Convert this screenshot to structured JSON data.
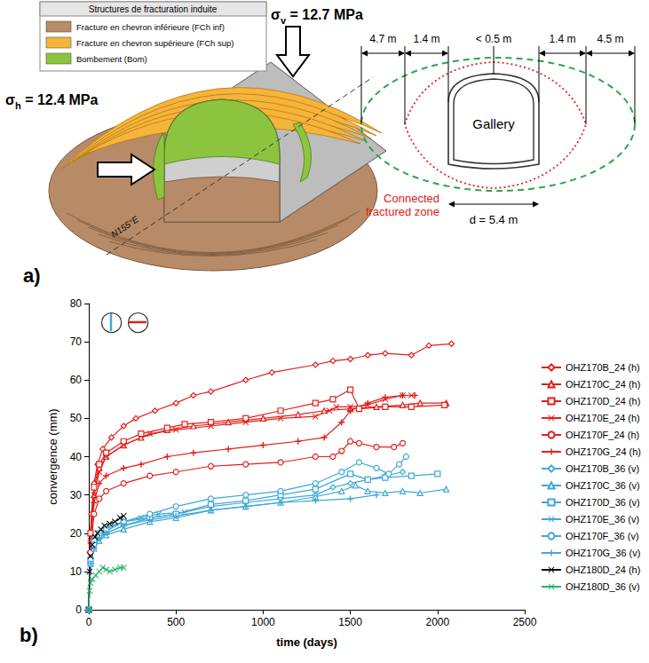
{
  "diagram": {
    "panel_label": "a)",
    "legend": {
      "title": "Structures de fracturation induite",
      "items": [
        {
          "label": "Fracture en chevron inférieure (FCh inf)",
          "color": "#b78b68"
        },
        {
          "label": "Fracture en chevron supérieure (FCh sup)",
          "color": "#f6b43a"
        },
        {
          "label": "Bombement (Bom)",
          "color": "#8cc43f"
        }
      ]
    },
    "stresses": [
      {
        "symbol": "σ",
        "subscript": "v",
        "text": " = 12.7 MPa",
        "direction": "vertical"
      },
      {
        "symbol": "σ",
        "subscript": "h",
        "text": " = 12.4 MPa",
        "direction": "horizontal"
      }
    ],
    "axis_label": "N155°E",
    "section": {
      "dimensions": [
        "4.7 m",
        "1.4 m",
        "< 0.5 m",
        "1.4 m",
        "4.5 m"
      ],
      "gallery": "Gallery",
      "zone": "Connected fractured zone",
      "diameter": "d = 5.4 m",
      "zone_color": "#e02020",
      "outer_color": "#2aa84a"
    }
  },
  "chart_data": {
    "type": "line",
    "panel_label": "b)",
    "xlabel": "time (days)",
    "ylabel": "convergence (mm)",
    "xlim": [
      0,
      2500
    ],
    "xticks": [
      0,
      500,
      1000,
      1500,
      2000,
      2500
    ],
    "ylim": [
      0,
      80
    ],
    "yticks": [
      0,
      10,
      20,
      30,
      40,
      50,
      60,
      70,
      80
    ],
    "grid": false,
    "legend": "right",
    "series": [
      {
        "name": "OHZ170B_24 (h)",
        "color": "#e3201b",
        "marker": "diamond",
        "x": [
          0,
          5,
          15,
          30,
          50,
          80,
          130,
          200,
          270,
          380,
          500,
          600,
          700,
          900,
          1050,
          1300,
          1400,
          1500,
          1600,
          1700,
          1850,
          1950,
          2080
        ],
        "values": [
          0,
          15,
          25,
          33,
          38,
          42,
          45,
          48,
          50,
          52,
          54,
          56,
          57,
          60,
          62,
          64,
          65,
          65.5,
          66.5,
          67,
          66.5,
          69,
          69.5
        ]
      },
      {
        "name": "OHZ170C_24 (h)",
        "color": "#e3201b",
        "marker": "triangle",
        "x": [
          0,
          10,
          30,
          60,
          100,
          200,
          300,
          450,
          600,
          800,
          1000,
          1200,
          1350,
          1500,
          1650,
          1800,
          1900,
          2050
        ],
        "values": [
          0,
          20,
          30,
          37,
          40,
          43,
          45,
          47,
          48,
          49,
          50,
          51,
          52,
          52.5,
          53,
          53.5,
          54,
          54
        ]
      },
      {
        "name": "OHZ170D_24 (h)",
        "color": "#e3201b",
        "marker": "square",
        "x": [
          0,
          10,
          30,
          60,
          100,
          200,
          300,
          450,
          550,
          700,
          900,
          1100,
          1300,
          1400,
          1500,
          1550,
          1700,
          1850,
          2040
        ],
        "values": [
          0,
          20,
          32,
          38,
          41,
          44,
          46,
          47.5,
          48.5,
          49,
          50,
          52,
          54,
          55,
          57.5,
          52.5,
          53,
          53,
          53.5
        ]
      },
      {
        "name": "OHZ170E_24 (h)",
        "color": "#e3201b",
        "marker": "x",
        "x": [
          0,
          10,
          30,
          60,
          100,
          200,
          350,
          500,
          700,
          900,
          1100,
          1300,
          1380,
          1420,
          1500,
          1600,
          1700,
          1800,
          1850
        ],
        "values": [
          0,
          18,
          30,
          36,
          40,
          43,
          46,
          47,
          48,
          49,
          50,
          50.5,
          52,
          53,
          53,
          53.5,
          55,
          56,
          56
        ]
      },
      {
        "name": "OHZ170F_24 (h)",
        "color": "#e3201b",
        "marker": "circle",
        "x": [
          0,
          10,
          30,
          60,
          100,
          200,
          350,
          500,
          700,
          900,
          1100,
          1300,
          1400,
          1450,
          1500,
          1550,
          1650,
          1750,
          1800
        ],
        "values": [
          0,
          15,
          25,
          29,
          31,
          33,
          35,
          36,
          37.5,
          38,
          38.5,
          40,
          40,
          41.5,
          44,
          43.5,
          42.5,
          42.5,
          43.5
        ]
      },
      {
        "name": "OHZ170G_24 (h)",
        "color": "#e3201b",
        "marker": "plus",
        "x": [
          0,
          10,
          30,
          60,
          100,
          200,
          300,
          450,
          600,
          800,
          1000,
          1200,
          1350,
          1450,
          1500,
          1600,
          1700,
          1800,
          1870
        ],
        "values": [
          0,
          18,
          28,
          33,
          35,
          37,
          38,
          40,
          41,
          42,
          43,
          44,
          45,
          49,
          52,
          54,
          55.5,
          56,
          56
        ]
      },
      {
        "name": "OHZ170B_36 (v)",
        "color": "#3fa9d5",
        "marker": "diamond",
        "x": [
          0,
          10,
          30,
          60,
          100,
          200,
          350,
          500,
          700,
          900,
          1100,
          1300,
          1400,
          1500,
          1600,
          1700,
          1800
        ],
        "values": [
          0,
          12,
          17,
          19,
          20,
          22,
          24,
          25,
          27,
          28,
          29,
          30,
          32,
          33,
          34,
          35,
          36
        ]
      },
      {
        "name": "OHZ170C_36 (v)",
        "color": "#3fa9d5",
        "marker": "triangle",
        "x": [
          0,
          10,
          30,
          60,
          100,
          200,
          350,
          500,
          700,
          900,
          1100,
          1300,
          1450,
          1530,
          1600,
          1700,
          1800,
          1900,
          2050
        ],
        "values": [
          0,
          12,
          16,
          18,
          19.5,
          21,
          23,
          24,
          26,
          27,
          28,
          29.5,
          31,
          32.5,
          31,
          30.5,
          31,
          30.5,
          31.5
        ]
      },
      {
        "name": "OHZ170D_36 (v)",
        "color": "#3fa9d5",
        "marker": "square",
        "x": [
          0,
          10,
          30,
          60,
          100,
          200,
          350,
          500,
          700,
          900,
          1100,
          1300,
          1500,
          1600,
          1700,
          1850,
          2000
        ],
        "values": [
          0,
          13,
          18,
          20,
          21.5,
          23,
          24,
          25,
          27.5,
          28.5,
          30,
          31.5,
          35.5,
          34,
          34.5,
          35,
          35.5
        ]
      },
      {
        "name": "OHZ170E_36 (v)",
        "color": "#3fa9d5",
        "marker": "x",
        "x": [
          0,
          10,
          30,
          60,
          100,
          200,
          300,
          400,
          550
        ],
        "values": [
          0,
          12,
          17,
          19,
          20.5,
          23,
          24,
          25,
          25.5
        ]
      },
      {
        "name": "OHZ170F_36 (v)",
        "color": "#3fa9d5",
        "marker": "circle",
        "x": [
          0,
          10,
          30,
          60,
          100,
          200,
          350,
          500,
          700,
          900,
          1100,
          1300,
          1450,
          1550,
          1650,
          1720,
          1780,
          1820
        ],
        "values": [
          0,
          12,
          17,
          19.5,
          21,
          23,
          25,
          27,
          29,
          30,
          31,
          33,
          36,
          38.5,
          37,
          35.5,
          38,
          40
        ]
      },
      {
        "name": "OHZ170G_36 (v)",
        "color": "#3fa9d5",
        "marker": "plus",
        "x": [
          0,
          10,
          30,
          60,
          100,
          200,
          350,
          500,
          700,
          900,
          1100,
          1300,
          1500,
          1650
        ],
        "values": [
          0,
          12,
          16,
          18.5,
          20,
          22,
          23.5,
          24.5,
          26,
          27,
          28,
          28.5,
          29,
          30
        ]
      },
      {
        "name": "OHZ180D_24 (h)",
        "color": "#000000",
        "marker": "x",
        "x": [
          0,
          5,
          10,
          20,
          35,
          50,
          70,
          90,
          120,
          150,
          180,
          200
        ],
        "values": [
          0,
          10,
          14,
          17,
          19,
          20,
          21,
          22,
          22.5,
          23,
          24,
          24.5
        ]
      },
      {
        "name": "OHZ180D_36 (v)",
        "color": "#26b36b",
        "marker": "x",
        "x": [
          0,
          5,
          10,
          20,
          40,
          60,
          80,
          100,
          120,
          150,
          180,
          200
        ],
        "values": [
          0,
          5,
          7,
          8,
          9,
          10,
          11,
          10.5,
          10,
          10.5,
          11,
          11
        ]
      }
    ]
  }
}
